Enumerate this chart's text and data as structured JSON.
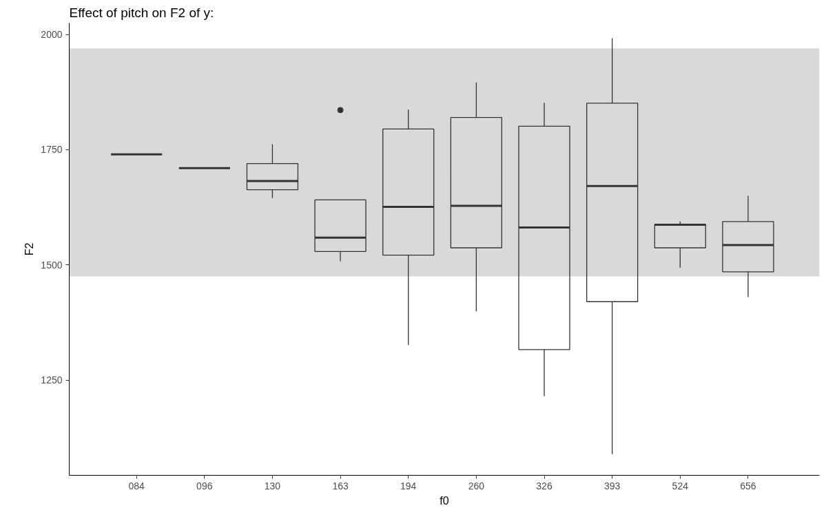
{
  "chart_data": {
    "type": "box",
    "title": "Effect of pitch on F2 of y:",
    "xlabel": "f0",
    "ylabel": "F2",
    "categories": [
      "084",
      "096",
      "130",
      "163",
      "194",
      "260",
      "326",
      "393",
      "524",
      "656"
    ],
    "color": "#333333",
    "boxes": [
      {
        "low": 1740,
        "q1": 1740,
        "median": 1740,
        "q3": 1740,
        "high": 1740
      },
      {
        "low": 1710,
        "q1": 1710,
        "median": 1710,
        "q3": 1710,
        "high": 1710
      },
      {
        "low": 1645,
        "q1": 1663,
        "median": 1682,
        "q3": 1720,
        "high": 1762
      },
      {
        "low": 1508,
        "q1": 1529,
        "median": 1559,
        "q3": 1641,
        "high": 1641,
        "outliers": [
          1836
        ]
      },
      {
        "low": 1326,
        "q1": 1521,
        "median": 1626,
        "q3": 1795,
        "high": 1837
      },
      {
        "low": 1399,
        "q1": 1537,
        "median": 1628,
        "q3": 1820,
        "high": 1896
      },
      {
        "low": 1215,
        "q1": 1316,
        "median": 1581,
        "q3": 1801,
        "high": 1852
      },
      {
        "low": 1089,
        "q1": 1420,
        "median": 1671,
        "q3": 1851,
        "high": 1992
      },
      {
        "low": 1494,
        "q1": 1537,
        "median": 1587,
        "q3": 1588,
        "high": 1594
      },
      {
        "low": 1430,
        "q1": 1485,
        "median": 1543,
        "q3": 1594,
        "high": 1650
      }
    ],
    "bands": [
      {
        "axis": "y",
        "from": 1475,
        "to": 1970,
        "color": "#d9d9d9"
      }
    ],
    "ylim": [
      1043,
      2025
    ],
    "yticks": [
      1250,
      1500,
      1750,
      2000
    ],
    "grid": false
  }
}
